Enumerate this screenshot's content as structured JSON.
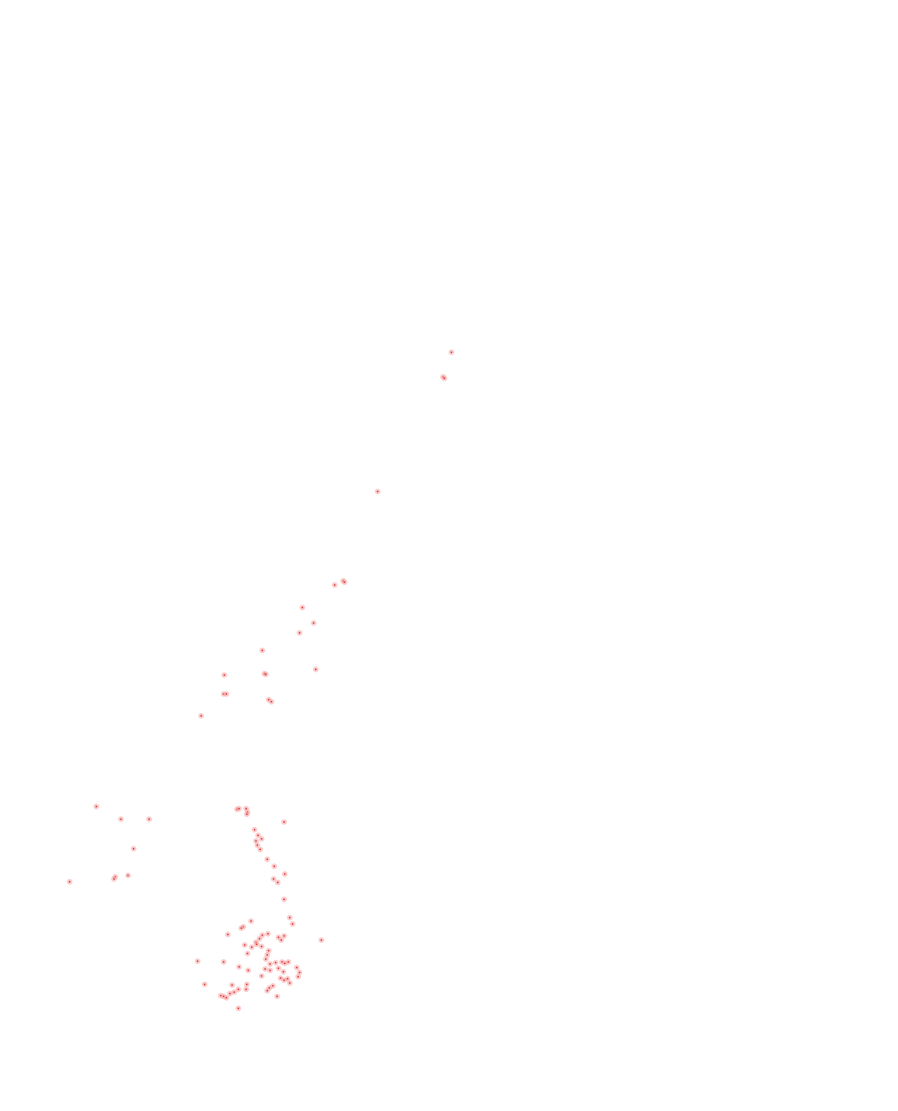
{
  "map": {
    "background_color": "#ffffff",
    "marker_icon": "dot-marker-icon",
    "marker_color": "#d94040",
    "marker_halo_color": "#f7a3a3",
    "marker_count": 127
  }
}
